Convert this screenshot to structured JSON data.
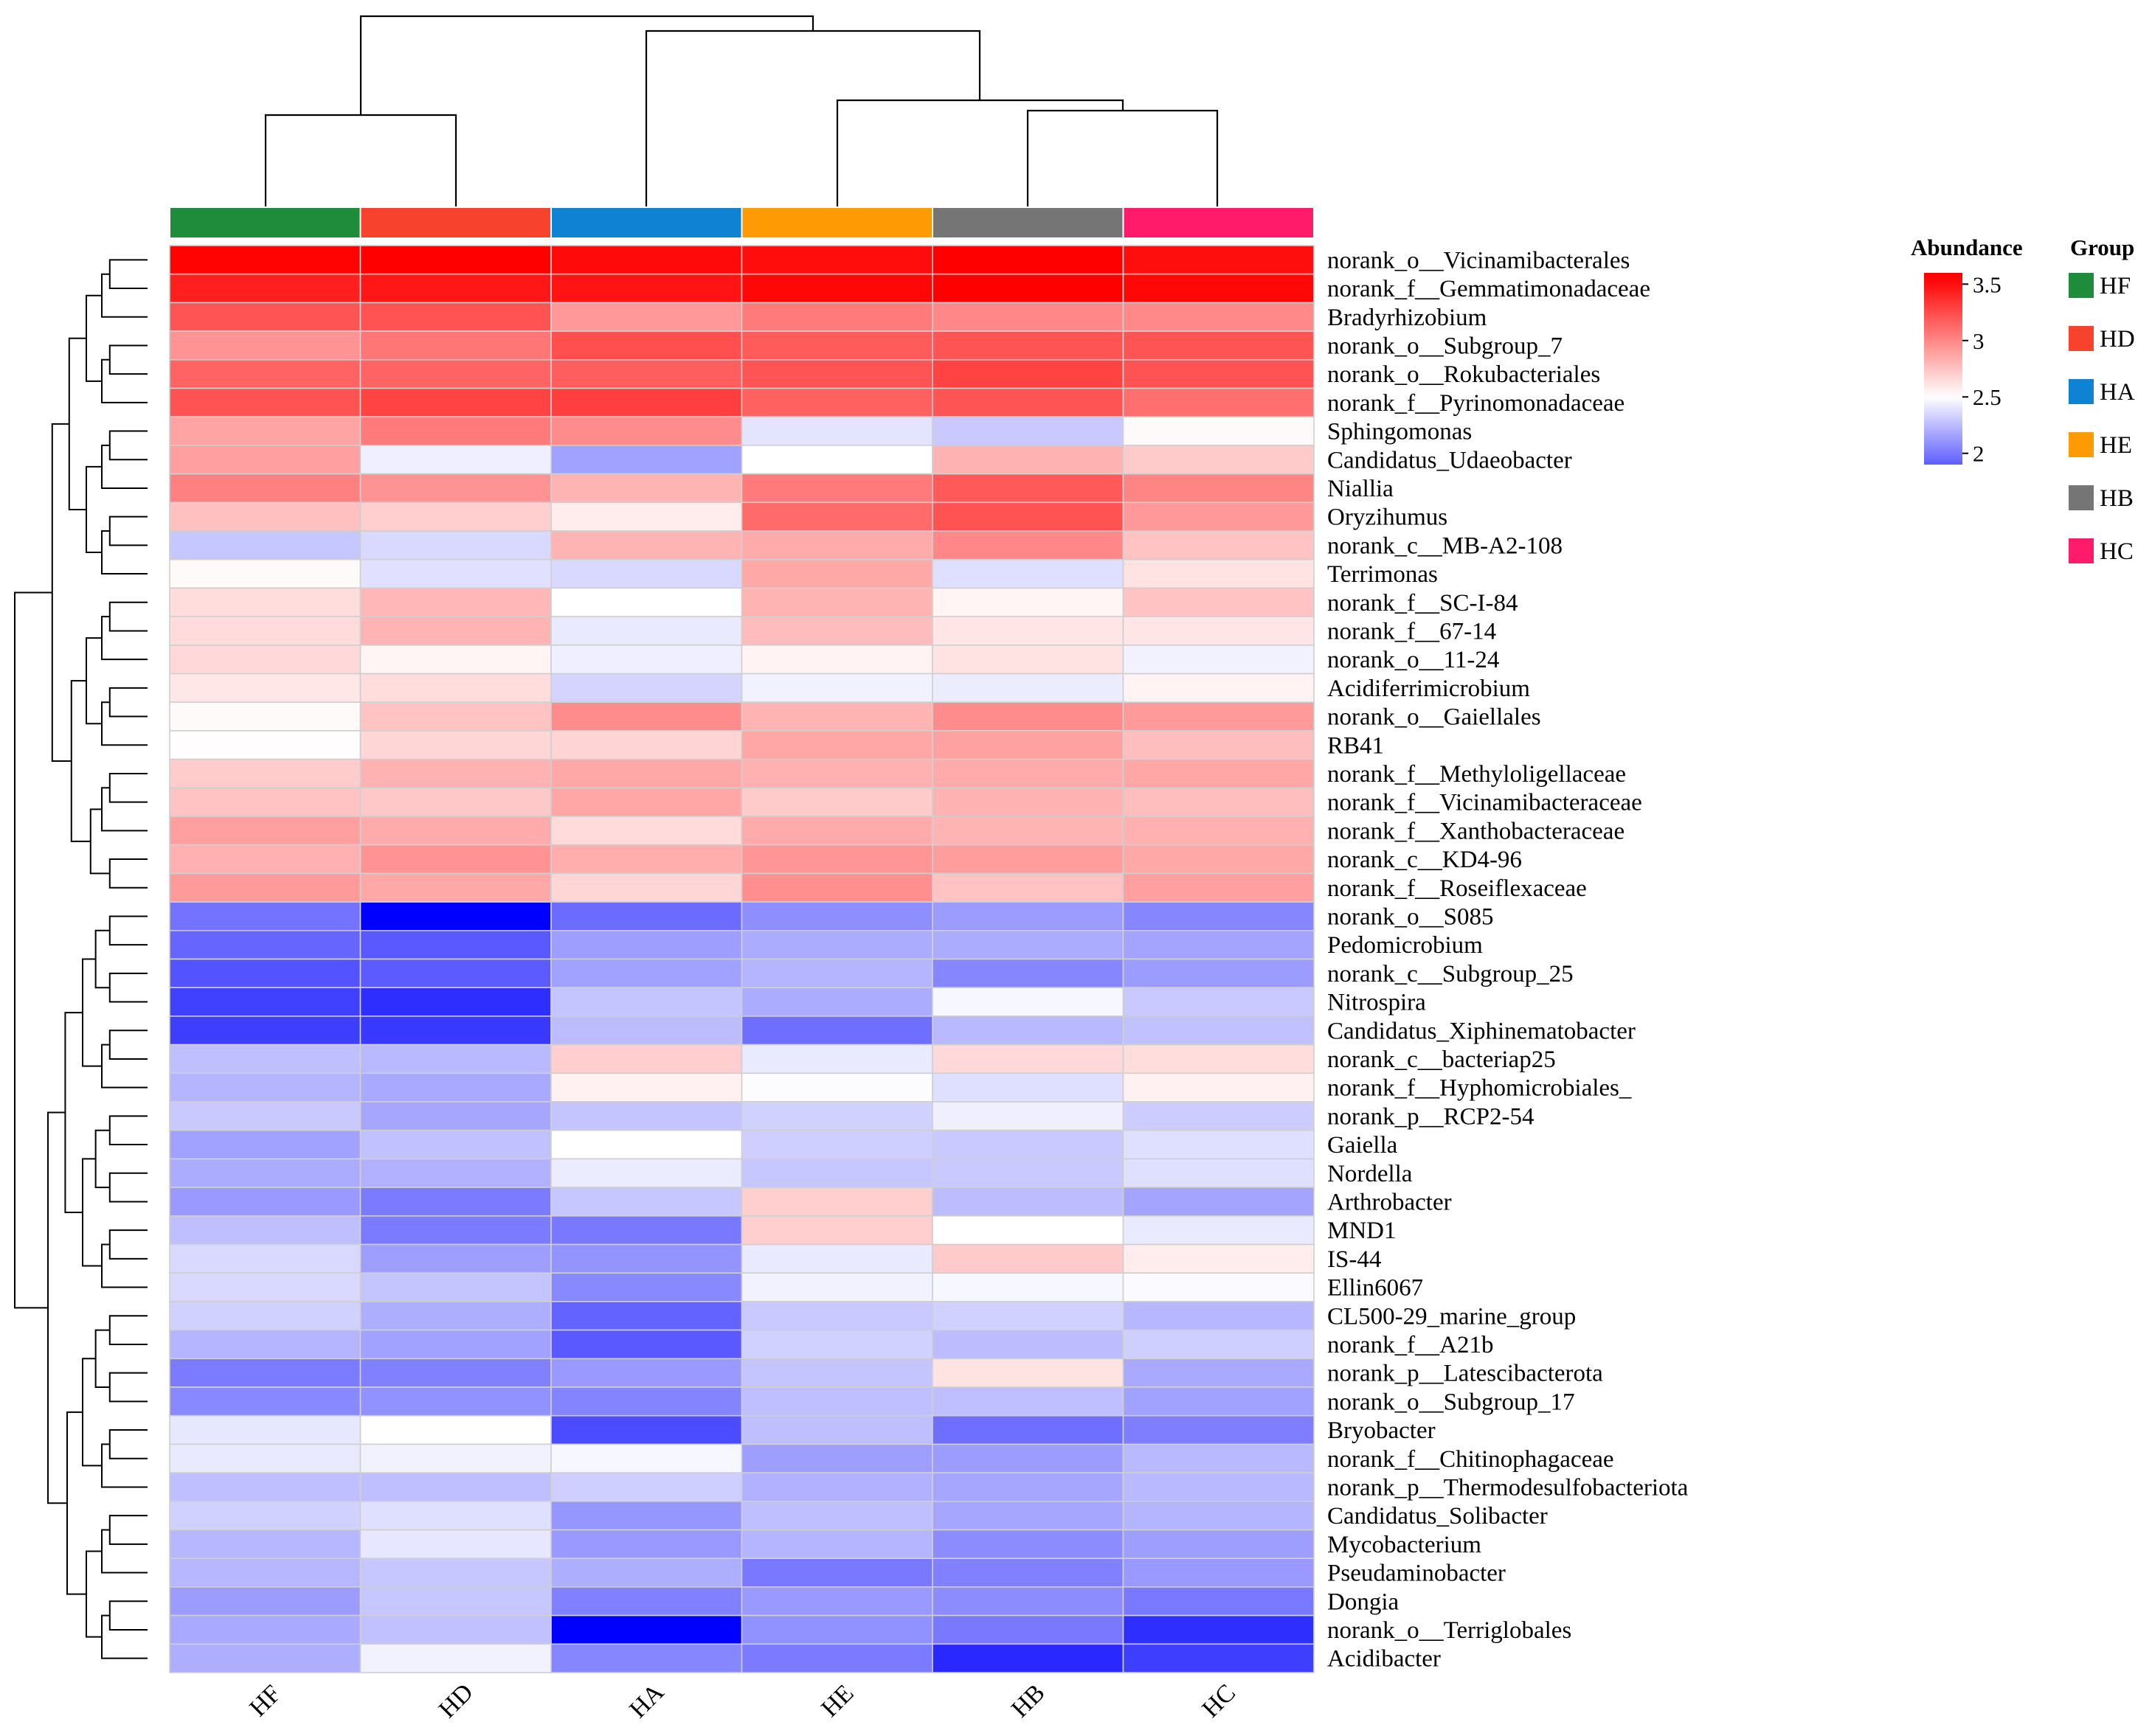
{
  "chart_data": {
    "type": "heatmap",
    "title": "",
    "columns": [
      "HF",
      "HD",
      "HA",
      "HE",
      "HB",
      "HC"
    ],
    "rows": [
      {
        "label": "norank_o__Vicinamibacterales",
        "values": [
          3.55,
          3.56,
          3.52,
          3.51,
          3.56,
          3.5
        ]
      },
      {
        "label": "norank_f__Gemmatimonadaceae",
        "values": [
          3.43,
          3.47,
          3.48,
          3.53,
          3.56,
          3.53
        ]
      },
      {
        "label": "Bradyrhizobium",
        "values": [
          3.21,
          3.22,
          2.93,
          3.05,
          3.0,
          2.99
        ]
      },
      {
        "label": "norank_o__Subgroup_7",
        "values": [
          2.95,
          3.07,
          3.23,
          3.18,
          3.21,
          3.21
        ]
      },
      {
        "label": "norank_o__Rokubacteriales",
        "values": [
          3.15,
          3.15,
          3.17,
          3.21,
          3.28,
          3.22
        ]
      },
      {
        "label": "norank_f__Pyrinomonadaceae",
        "values": [
          3.22,
          3.28,
          3.3,
          3.16,
          3.21,
          3.1
        ]
      },
      {
        "label": "Sphingomonas",
        "values": [
          2.88,
          3.05,
          2.98,
          2.4,
          2.3,
          2.52
        ]
      },
      {
        "label": "Candidatus_Udaeobacter",
        "values": [
          2.9,
          2.44,
          2.15,
          2.5,
          2.82,
          2.72
        ]
      },
      {
        "label": "Niallia",
        "values": [
          3.03,
          2.95,
          2.81,
          3.05,
          3.19,
          3.01
        ]
      },
      {
        "label": "Oryzihumus",
        "values": [
          2.76,
          2.7,
          2.58,
          3.12,
          3.22,
          2.93
        ]
      },
      {
        "label": "norank_c__MB-A2-108",
        "values": [
          2.29,
          2.36,
          2.81,
          2.85,
          3.0,
          2.75
        ]
      },
      {
        "label": "Terrimonas",
        "values": [
          2.52,
          2.39,
          2.36,
          2.86,
          2.38,
          2.62
        ]
      },
      {
        "label": "norank_f__SC-I-84",
        "values": [
          2.64,
          2.8,
          2.5,
          2.81,
          2.54,
          2.75
        ]
      },
      {
        "label": "norank_f__67-14",
        "values": [
          2.65,
          2.81,
          2.42,
          2.78,
          2.61,
          2.61
        ]
      },
      {
        "label": "norank_o__11-24",
        "values": [
          2.66,
          2.54,
          2.44,
          2.55,
          2.62,
          2.45
        ]
      },
      {
        "label": "Acidiferrimicrobium",
        "values": [
          2.6,
          2.64,
          2.34,
          2.45,
          2.43,
          2.55
        ]
      },
      {
        "label": "norank_o__Gaiellales",
        "values": [
          2.52,
          2.75,
          2.98,
          2.81,
          2.98,
          2.92
        ]
      },
      {
        "label": "RB41",
        "values": [
          2.51,
          2.67,
          2.68,
          2.87,
          2.89,
          2.77
        ]
      },
      {
        "label": "norank_f__Methyloligellaceae",
        "values": [
          2.71,
          2.82,
          2.86,
          2.83,
          2.85,
          2.87
        ]
      },
      {
        "label": "norank_f__Vicinamibacteraceae",
        "values": [
          2.75,
          2.73,
          2.87,
          2.72,
          2.82,
          2.77
        ]
      },
      {
        "label": "norank_f__Xanthobacteraceae",
        "values": [
          2.9,
          2.85,
          2.65,
          2.85,
          2.81,
          2.83
        ]
      },
      {
        "label": "norank_c__KD4-96",
        "values": [
          2.83,
          2.95,
          2.84,
          2.94,
          2.91,
          2.86
        ]
      },
      {
        "label": "norank_f__Roseiflexaceae",
        "values": [
          2.92,
          2.86,
          2.67,
          2.97,
          2.75,
          2.9
        ]
      },
      {
        "label": "norank_o__S085",
        "values": [
          1.98,
          1.55,
          1.95,
          2.08,
          2.13,
          2.05
        ]
      },
      {
        "label": "Pedomicrobium",
        "values": [
          1.93,
          1.88,
          2.14,
          2.19,
          2.19,
          2.16
        ]
      },
      {
        "label": "norank_c__Subgroup_25",
        "values": [
          1.86,
          1.89,
          2.15,
          2.22,
          2.05,
          2.13
        ]
      },
      {
        "label": "Nitrospira",
        "values": [
          1.79,
          1.72,
          2.28,
          2.19,
          2.47,
          2.3
        ]
      },
      {
        "label": "Candidatus_Xiphinematobacter",
        "values": [
          1.78,
          1.76,
          2.25,
          1.96,
          2.24,
          2.27
        ]
      },
      {
        "label": "norank_c__bacteriap25",
        "values": [
          2.26,
          2.24,
          2.7,
          2.42,
          2.66,
          2.64
        ]
      },
      {
        "label": "norank_f__Hyphomicrobiales_",
        "values": [
          2.22,
          2.18,
          2.56,
          2.49,
          2.38,
          2.56
        ]
      },
      {
        "label": "norank_p__RCP2-54",
        "values": [
          2.3,
          2.17,
          2.28,
          2.33,
          2.44,
          2.31
        ]
      },
      {
        "label": "Gaiella",
        "values": [
          2.15,
          2.27,
          2.5,
          2.32,
          2.3,
          2.38
        ]
      },
      {
        "label": "Nordella",
        "values": [
          2.19,
          2.21,
          2.43,
          2.29,
          2.3,
          2.38
        ]
      },
      {
        "label": "Arthrobacter",
        "values": [
          2.12,
          2.01,
          2.29,
          2.7,
          2.25,
          2.16
        ]
      },
      {
        "label": "MND1",
        "values": [
          2.26,
          2.01,
          2.0,
          2.7,
          2.5,
          2.42
        ]
      },
      {
        "label": "IS-44",
        "values": [
          2.36,
          2.14,
          2.1,
          2.42,
          2.72,
          2.58
        ]
      },
      {
        "label": "Ellin6067",
        "values": [
          2.36,
          2.28,
          2.06,
          2.45,
          2.47,
          2.48
        ]
      },
      {
        "label": "CL500-29_marine_group",
        "values": [
          2.33,
          2.2,
          1.92,
          2.3,
          2.33,
          2.23
        ]
      },
      {
        "label": "norank_f__A21b",
        "values": [
          2.22,
          2.15,
          1.88,
          2.33,
          2.25,
          2.32
        ]
      },
      {
        "label": "norank_p__Latescibacterota",
        "values": [
          2.01,
          2.03,
          2.12,
          2.28,
          2.62,
          2.18
        ]
      },
      {
        "label": "norank_o__Subgroup_17",
        "values": [
          2.06,
          2.09,
          2.04,
          2.26,
          2.26,
          2.15
        ]
      },
      {
        "label": "Bryobacter",
        "values": [
          2.41,
          2.5,
          1.83,
          2.26,
          1.96,
          2.02
        ]
      },
      {
        "label": "norank_f__Chitinophagaceae",
        "values": [
          2.42,
          2.45,
          2.47,
          2.14,
          2.13,
          2.24
        ]
      },
      {
        "label": "norank_p__Thermodesulfobacteriota",
        "values": [
          2.26,
          2.26,
          2.32,
          2.21,
          2.17,
          2.24
        ]
      },
      {
        "label": "Candidatus_Solibacter",
        "values": [
          2.33,
          2.38,
          2.11,
          2.26,
          2.17,
          2.22
        ]
      },
      {
        "label": "Mycobacterium",
        "values": [
          2.23,
          2.41,
          2.12,
          2.22,
          2.07,
          2.14
        ]
      },
      {
        "label": "Pseudaminobacter",
        "values": [
          2.23,
          2.29,
          2.2,
          2.0,
          2.03,
          2.12
        ]
      },
      {
        "label": "Dongia",
        "values": [
          2.13,
          2.29,
          2.03,
          2.12,
          2.07,
          2.0
        ]
      },
      {
        "label": "norank_o__Terriglobales",
        "values": [
          2.18,
          2.27,
          1.55,
          2.09,
          2.0,
          1.72
        ]
      },
      {
        "label": "Acidibacter",
        "values": [
          2.2,
          2.45,
          2.05,
          2.01,
          1.7,
          1.78
        ]
      }
    ],
    "color_scale": {
      "domain": [
        1.55,
        2.5,
        3.56
      ],
      "colors": [
        "#0000ff",
        "#ffffff",
        "#ff0000"
      ]
    },
    "legend": {
      "title": "Abundance",
      "ticks": [
        3.5,
        3,
        2.5,
        2
      ],
      "tick_labels": [
        "3.5",
        "3",
        "2.5",
        "2"
      ],
      "placement": "right"
    },
    "group_legend": {
      "title": "Group",
      "placement": "right",
      "items": [
        {
          "label": "HF",
          "color": "#1e8c3a"
        },
        {
          "label": "HD",
          "color": "#f7422e"
        },
        {
          "label": "HA",
          "color": "#0f82d4"
        },
        {
          "label": "HE",
          "color": "#fd9a04"
        },
        {
          "label": "HB",
          "color": "#757575"
        },
        {
          "label": "HC",
          "color": "#ff1b6a"
        }
      ]
    },
    "column_dendrogram": [
      {
        "merge": [
          "HF",
          "HD"
        ],
        "height": 0.45
      },
      {
        "merge": [
          "HB",
          "HC"
        ],
        "height": 0.4
      },
      {
        "merge": [
          "HE",
          "HB+HC"
        ],
        "height": 0.55
      },
      {
        "merge": [
          "HA",
          "HE+HB+HC"
        ],
        "height": 0.85
      },
      {
        "merge": [
          "HF+HD",
          "HA+HE+HB+HC"
        ],
        "height": 1.0
      }
    ],
    "row_clusters": [
      "upper block (rows 1-23)",
      "lower block (rows 24-50)"
    ]
  }
}
